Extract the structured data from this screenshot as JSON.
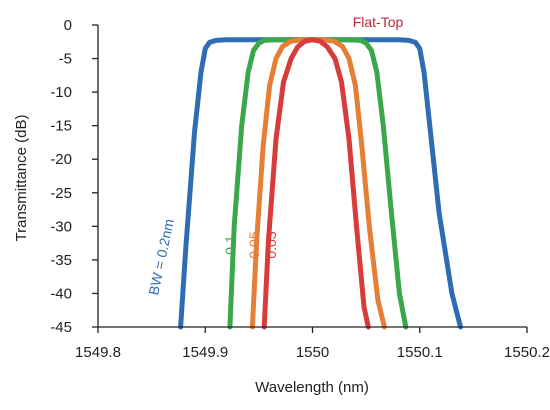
{
  "chart_data": {
    "type": "line",
    "title": "",
    "xlabel": "Wavelength (nm)",
    "ylabel": "Transmittance (dB)",
    "xlim": [
      1549.8,
      1550.2
    ],
    "ylim": [
      -45,
      0
    ],
    "xticks": [
      1549.8,
      1549.9,
      1550,
      1550.1,
      1550.2
    ],
    "xtick_labels": [
      "1549.8",
      "1549.9",
      "1550",
      "1550.1",
      "1550.2"
    ],
    "yticks": [
      0,
      -5,
      -10,
      -15,
      -20,
      -25,
      -30,
      -35,
      -40,
      -45
    ],
    "ytick_labels": [
      "0",
      "-5",
      "-10",
      "-15",
      "-20",
      "-25",
      "-30",
      "-35",
      "-40",
      "-45"
    ],
    "grid": false,
    "series": [
      {
        "name": "BW = 0.2nm",
        "color": "#2e6db3",
        "x": [
          1549.877,
          1549.882,
          1549.89,
          1549.896,
          1549.9,
          1549.904,
          1549.91,
          1549.92,
          1549.95,
          1550.0,
          1550.05,
          1550.08,
          1550.09,
          1550.096,
          1550.1,
          1550.104,
          1550.11,
          1550.118,
          1550.13,
          1550.138
        ],
        "y": [
          -45,
          -33,
          -16,
          -7,
          -3.5,
          -2.6,
          -2.3,
          -2.2,
          -2.2,
          -2.2,
          -2.2,
          -2.2,
          -2.3,
          -2.6,
          -3.5,
          -7,
          -16,
          -28,
          -40,
          -45
        ]
      },
      {
        "name": "0.1",
        "color": "#3aa84a",
        "x": [
          1549.923,
          1549.927,
          1549.934,
          1549.94,
          1549.945,
          1549.95,
          1549.955,
          1549.965,
          1550.0,
          1550.035,
          1550.045,
          1550.05,
          1550.055,
          1550.06,
          1550.066,
          1550.073,
          1550.081,
          1550.087
        ],
        "y": [
          -45,
          -30,
          -15,
          -7,
          -3.8,
          -2.7,
          -2.3,
          -2.2,
          -2.2,
          -2.2,
          -2.3,
          -2.7,
          -3.8,
          -7,
          -15,
          -27,
          -40,
          -45
        ]
      },
      {
        "name": "0.05",
        "color": "#e57f36",
        "x": [
          1549.944,
          1549.948,
          1549.954,
          1549.96,
          1549.966,
          1549.972,
          1549.98,
          1549.99,
          1550.0,
          1550.01,
          1550.02,
          1550.028,
          1550.034,
          1550.04,
          1550.046,
          1550.053,
          1550.061,
          1550.067
        ],
        "y": [
          -45,
          -32,
          -18,
          -9,
          -5,
          -3.2,
          -2.4,
          -2.2,
          -2.2,
          -2.2,
          -2.4,
          -3.2,
          -5,
          -9,
          -18,
          -30,
          -41,
          -45
        ]
      },
      {
        "name": "0.03",
        "color": "#d93a3a",
        "x": [
          1549.955,
          1549.959,
          1549.966,
          1549.973,
          1549.98,
          1549.986,
          1549.993,
          1550.0,
          1550.007,
          1550.014,
          1550.021,
          1550.027,
          1550.034,
          1550.041,
          1550.048,
          1550.052
        ],
        "y": [
          -45,
          -32,
          -17,
          -8.5,
          -5,
          -3.3,
          -2.4,
          -2.2,
          -2.4,
          -3.3,
          -5,
          -8.5,
          -17,
          -30,
          -42,
          -45
        ]
      }
    ],
    "annotations": [
      {
        "text": "Flat-Top",
        "color": "#c0253a"
      },
      {
        "text": "BW = 0.2nm",
        "color": "#2e6db3"
      },
      {
        "text": "0.1",
        "color": "#3aa84a"
      },
      {
        "text": "0.05",
        "color": "#e57f36"
      },
      {
        "text": "0.03",
        "color": "#d93a3a"
      }
    ]
  }
}
